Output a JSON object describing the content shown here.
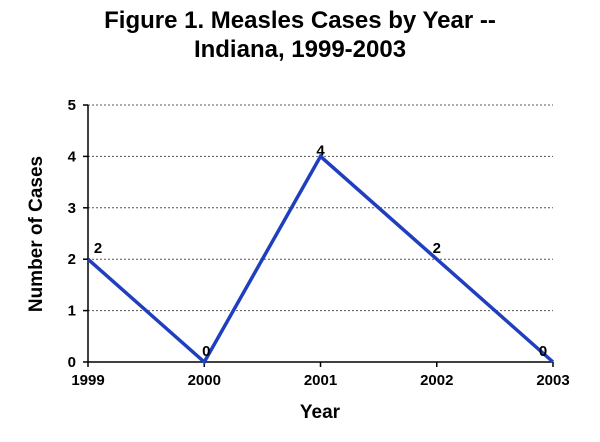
{
  "chart_data": {
    "type": "line",
    "title_lines": [
      "Figure 1. Measles Cases by Year --",
      "Indiana, 1999-2003"
    ],
    "xlabel": "Year",
    "ylabel": "Number of Cases",
    "x": [
      "1999",
      "2000",
      "2001",
      "2002",
      "2003"
    ],
    "series": [
      {
        "name": "Measles cases",
        "values": [
          2,
          0,
          4,
          2,
          0
        ]
      }
    ],
    "data_labels": [
      "2",
      "0",
      "4",
      "2",
      "0"
    ],
    "ylim": [
      0,
      5
    ],
    "yticks": [
      "0",
      "1",
      "2",
      "3",
      "4",
      "5"
    ],
    "grid": "horizontal dotted",
    "line_color": "#1f3fbf"
  }
}
